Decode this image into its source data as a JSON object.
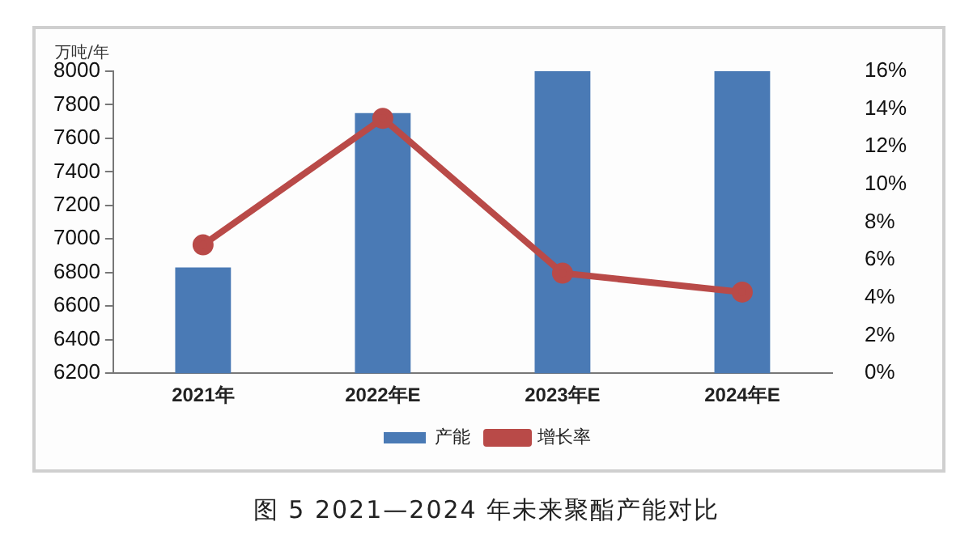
{
  "chart_data": {
    "type": "bar",
    "title": "图 5  2021—2024 年未来聚酯产能对比",
    "ylabel": "万吨/年",
    "categories": [
      "2021年",
      "2022年E",
      "2023年E",
      "2024年E"
    ],
    "series": [
      {
        "name": "产能",
        "color": "#4a7ab5",
        "values": [
          6830,
          7750,
          8000,
          8000
        ]
      },
      {
        "name": "增长率",
        "type": "line",
        "axis": "y2",
        "color": "#b94a48",
        "values": [
          6.8,
          13.5,
          5.3,
          4.3
        ]
      }
    ],
    "ylim": [
      6200,
      8000
    ],
    "yticks": [
      6200,
      6400,
      6600,
      6800,
      7000,
      7200,
      7400,
      7600,
      7800,
      8000
    ],
    "y2lim": [
      0,
      16
    ],
    "y2ticks": [
      {
        "value": 0,
        "label": "0%"
      },
      {
        "value": 2,
        "label": "2%"
      },
      {
        "value": 4,
        "label": "4%"
      },
      {
        "value": 6,
        "label": "6%"
      },
      {
        "value": 8,
        "label": "8%"
      },
      {
        "value": 10,
        "label": "10%"
      },
      {
        "value": 12,
        "label": "12%"
      },
      {
        "value": 14,
        "label": "14%"
      },
      {
        "value": 16,
        "label": "16%"
      }
    ],
    "legend": "bottom",
    "grid": false,
    "marker": "circle"
  }
}
